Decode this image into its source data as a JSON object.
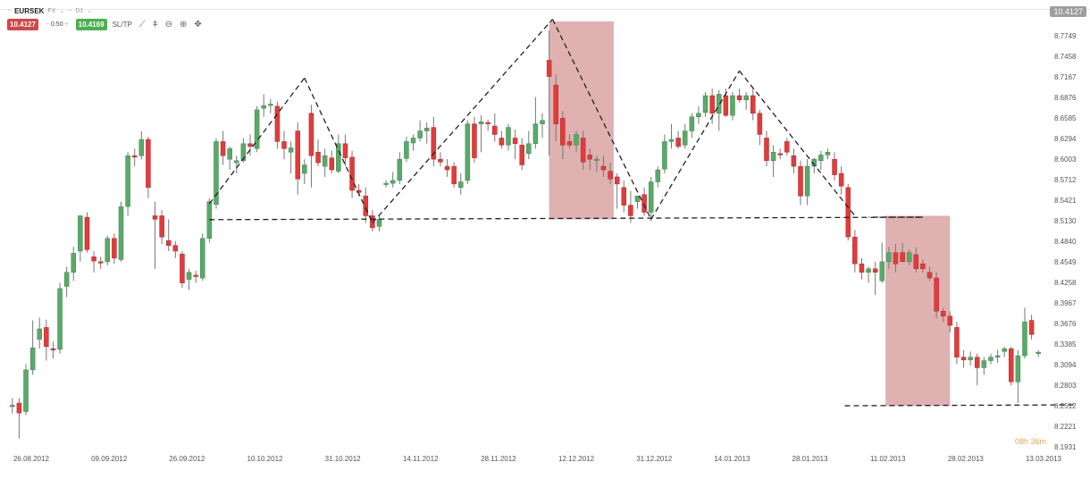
{
  "header": {
    "symbol": "EURSEK",
    "market": "FX",
    "timeframe": "D1",
    "sell_price": "10.4127",
    "lot_size": "0.50",
    "buy_price": "10.4169",
    "sltp_label": "SL/TP",
    "current_price_tag": "10.4127",
    "countdown": "08h 36m"
  },
  "icons": [
    "line-chart-icon",
    "candle-chart-icon",
    "zoom-out-icon",
    "zoom-in-icon",
    "crosshair-icon"
  ],
  "colors": {
    "bull": "#5aa96a",
    "bear": "#e03c3c",
    "zone": "#d9a3a3",
    "line": "#222222",
    "accent_timer": "#e8a55a"
  },
  "chart_data": {
    "type": "candlestick",
    "x_tick_labels": [
      "26.08.2012",
      "09.09.2012",
      "26.09.2012",
      "10.10.2012",
      "31.10.2012",
      "14.11.2012",
      "28.11.2012",
      "12.12.2012",
      "31.12.2012",
      "14.01.2013",
      "28.01.2013",
      "11.02.2013",
      "28.02.2013",
      "13.03.2013"
    ],
    "y_tick_labels": [
      "8.7749",
      "8.7458",
      "8.7167",
      "8.6876",
      "8.6585",
      "8.6294",
      "8.6003",
      "8.5712",
      "8.5421",
      "8.5130",
      "8.4840",
      "8.4549",
      "8.4258",
      "8.3967",
      "8.3676",
      "8.3385",
      "8.3094",
      "8.2803",
      "8.2512",
      "8.2221",
      "8.1931"
    ],
    "ylim": [
      8.1931,
      8.8
    ],
    "candles": [
      {
        "o": 8.25,
        "h": 8.262,
        "l": 8.24,
        "c": 8.252
      },
      {
        "o": 8.255,
        "h": 8.262,
        "l": 8.205,
        "c": 8.241
      },
      {
        "o": 8.243,
        "h": 8.31,
        "l": 8.238,
        "c": 8.302
      },
      {
        "o": 8.302,
        "h": 8.372,
        "l": 8.295,
        "c": 8.333
      },
      {
        "o": 8.345,
        "h": 8.376,
        "l": 8.332,
        "c": 8.36
      },
      {
        "o": 8.362,
        "h": 8.373,
        "l": 8.315,
        "c": 8.335
      },
      {
        "o": 8.332,
        "h": 8.342,
        "l": 8.318,
        "c": 8.33
      },
      {
        "o": 8.331,
        "h": 8.425,
        "l": 8.325,
        "c": 8.417
      },
      {
        "o": 8.42,
        "h": 8.448,
        "l": 8.405,
        "c": 8.44
      },
      {
        "o": 8.44,
        "h": 8.476,
        "l": 8.428,
        "c": 8.467
      },
      {
        "o": 8.47,
        "h": 8.52,
        "l": 8.455,
        "c": 8.52
      },
      {
        "o": 8.518,
        "h": 8.525,
        "l": 8.468,
        "c": 8.472
      },
      {
        "o": 8.462,
        "h": 8.47,
        "l": 8.44,
        "c": 8.456
      },
      {
        "o": 8.455,
        "h": 8.462,
        "l": 8.445,
        "c": 8.453
      },
      {
        "o": 8.455,
        "h": 8.492,
        "l": 8.45,
        "c": 8.488
      },
      {
        "o": 8.488,
        "h": 8.495,
        "l": 8.452,
        "c": 8.46
      },
      {
        "o": 8.458,
        "h": 8.54,
        "l": 8.455,
        "c": 8.533
      },
      {
        "o": 8.533,
        "h": 8.61,
        "l": 8.52,
        "c": 8.605
      },
      {
        "o": 8.605,
        "h": 8.615,
        "l": 8.59,
        "c": 8.603
      },
      {
        "o": 8.605,
        "h": 8.64,
        "l": 8.6,
        "c": 8.628
      },
      {
        "o": 8.628,
        "h": 8.632,
        "l": 8.545,
        "c": 8.56
      },
      {
        "o": 8.52,
        "h": 8.54,
        "l": 8.445,
        "c": 8.515
      },
      {
        "o": 8.52,
        "h": 8.528,
        "l": 8.48,
        "c": 8.49
      },
      {
        "o": 8.485,
        "h": 8.515,
        "l": 8.47,
        "c": 8.478
      },
      {
        "o": 8.478,
        "h": 8.484,
        "l": 8.46,
        "c": 8.47
      },
      {
        "o": 8.466,
        "h": 8.47,
        "l": 8.418,
        "c": 8.425
      },
      {
        "o": 8.43,
        "h": 8.445,
        "l": 8.415,
        "c": 8.44
      },
      {
        "o": 8.436,
        "h": 8.442,
        "l": 8.425,
        "c": 8.434
      },
      {
        "o": 8.432,
        "h": 8.495,
        "l": 8.428,
        "c": 8.488
      },
      {
        "o": 8.488,
        "h": 8.545,
        "l": 8.482,
        "c": 8.54
      },
      {
        "o": 8.536,
        "h": 8.63,
        "l": 8.53,
        "c": 8.625
      },
      {
        "o": 8.625,
        "h": 8.64,
        "l": 8.592,
        "c": 8.605
      },
      {
        "o": 8.6,
        "h": 8.618,
        "l": 8.585,
        "c": 8.615
      },
      {
        "o": 8.595,
        "h": 8.605,
        "l": 8.58,
        "c": 8.598
      },
      {
        "o": 8.598,
        "h": 8.63,
        "l": 8.595,
        "c": 8.622
      },
      {
        "o": 8.622,
        "h": 8.635,
        "l": 8.605,
        "c": 8.618
      },
      {
        "o": 8.615,
        "h": 8.675,
        "l": 8.61,
        "c": 8.67
      },
      {
        "o": 8.672,
        "h": 8.692,
        "l": 8.66,
        "c": 8.676
      },
      {
        "o": 8.676,
        "h": 8.685,
        "l": 8.665,
        "c": 8.678
      },
      {
        "o": 8.675,
        "h": 8.682,
        "l": 8.615,
        "c": 8.625
      },
      {
        "o": 8.625,
        "h": 8.64,
        "l": 8.6,
        "c": 8.615
      },
      {
        "o": 8.61,
        "h": 8.625,
        "l": 8.58,
        "c": 8.616
      },
      {
        "o": 8.64,
        "h": 8.652,
        "l": 8.55,
        "c": 8.572
      },
      {
        "o": 8.58,
        "h": 8.6,
        "l": 8.565,
        "c": 8.592
      },
      {
        "o": 8.665,
        "h": 8.677,
        "l": 8.56,
        "c": 8.605
      },
      {
        "o": 8.61,
        "h": 8.628,
        "l": 8.59,
        "c": 8.595
      },
      {
        "o": 8.59,
        "h": 8.615,
        "l": 8.575,
        "c": 8.605
      },
      {
        "o": 8.602,
        "h": 8.612,
        "l": 8.58,
        "c": 8.585
      },
      {
        "o": 8.583,
        "h": 8.635,
        "l": 8.58,
        "c": 8.622
      },
      {
        "o": 8.622,
        "h": 8.635,
        "l": 8.59,
        "c": 8.602
      },
      {
        "o": 8.603,
        "h": 8.612,
        "l": 8.545,
        "c": 8.556
      },
      {
        "o": 8.556,
        "h": 8.565,
        "l": 8.548,
        "c": 8.553
      },
      {
        "o": 8.548,
        "h": 8.56,
        "l": 8.51,
        "c": 8.52
      },
      {
        "o": 8.52,
        "h": 8.528,
        "l": 8.498,
        "c": 8.503
      },
      {
        "o": 8.505,
        "h": 8.52,
        "l": 8.498,
        "c": 8.515
      },
      {
        "o": 8.565,
        "h": 8.57,
        "l": 8.56,
        "c": 8.566
      },
      {
        "o": 8.566,
        "h": 8.582,
        "l": 8.56,
        "c": 8.57
      },
      {
        "o": 8.57,
        "h": 8.61,
        "l": 8.565,
        "c": 8.6
      },
      {
        "o": 8.601,
        "h": 8.632,
        "l": 8.596,
        "c": 8.625
      },
      {
        "o": 8.623,
        "h": 8.635,
        "l": 8.612,
        "c": 8.63
      },
      {
        "o": 8.63,
        "h": 8.655,
        "l": 8.625,
        "c": 8.64
      },
      {
        "o": 8.64,
        "h": 8.652,
        "l": 8.622,
        "c": 8.644
      },
      {
        "o": 8.645,
        "h": 8.66,
        "l": 8.59,
        "c": 8.6
      },
      {
        "o": 8.6,
        "h": 8.61,
        "l": 8.59,
        "c": 8.596
      },
      {
        "o": 8.59,
        "h": 8.6,
        "l": 8.575,
        "c": 8.585
      },
      {
        "o": 8.59,
        "h": 8.596,
        "l": 8.56,
        "c": 8.565
      },
      {
        "o": 8.56,
        "h": 8.58,
        "l": 8.55,
        "c": 8.568
      },
      {
        "o": 8.57,
        "h": 8.655,
        "l": 8.565,
        "c": 8.65
      },
      {
        "o": 8.65,
        "h": 8.66,
        "l": 8.595,
        "c": 8.602
      },
      {
        "o": 8.65,
        "h": 8.662,
        "l": 8.61,
        "c": 8.653
      },
      {
        "o": 8.652,
        "h": 8.656,
        "l": 8.64,
        "c": 8.65
      },
      {
        "o": 8.647,
        "h": 8.665,
        "l": 8.625,
        "c": 8.635
      },
      {
        "o": 8.63,
        "h": 8.64,
        "l": 8.615,
        "c": 8.62
      },
      {
        "o": 8.62,
        "h": 8.65,
        "l": 8.612,
        "c": 8.645
      },
      {
        "o": 8.63,
        "h": 8.642,
        "l": 8.6,
        "c": 8.622
      },
      {
        "o": 8.62,
        "h": 8.63,
        "l": 8.585,
        "c": 8.592
      },
      {
        "o": 8.608,
        "h": 8.64,
        "l": 8.6,
        "c": 8.622
      },
      {
        "o": 8.622,
        "h": 8.688,
        "l": 8.615,
        "c": 8.65
      },
      {
        "o": 8.65,
        "h": 8.665,
        "l": 8.63,
        "c": 8.655
      },
      {
        "o": 8.74,
        "h": 8.782,
        "l": 8.605,
        "c": 8.717
      },
      {
        "o": 8.705,
        "h": 8.72,
        "l": 8.625,
        "c": 8.65
      },
      {
        "o": 8.658,
        "h": 8.668,
        "l": 8.6,
        "c": 8.62
      },
      {
        "o": 8.625,
        "h": 8.635,
        "l": 8.615,
        "c": 8.62
      },
      {
        "o": 8.62,
        "h": 8.64,
        "l": 8.61,
        "c": 8.635
      },
      {
        "o": 8.63,
        "h": 8.64,
        "l": 8.585,
        "c": 8.596
      },
      {
        "o": 8.606,
        "h": 8.615,
        "l": 8.585,
        "c": 8.6
      },
      {
        "o": 8.6,
        "h": 8.605,
        "l": 8.582,
        "c": 8.6
      },
      {
        "o": 8.59,
        "h": 8.605,
        "l": 8.575,
        "c": 8.585
      },
      {
        "o": 8.583,
        "h": 8.595,
        "l": 8.565,
        "c": 8.572
      },
      {
        "o": 8.575,
        "h": 8.58,
        "l": 8.53,
        "c": 8.565
      },
      {
        "o": 8.56,
        "h": 8.57,
        "l": 8.525,
        "c": 8.535
      },
      {
        "o": 8.535,
        "h": 8.555,
        "l": 8.51,
        "c": 8.52
      },
      {
        "o": 8.54,
        "h": 8.548,
        "l": 8.53,
        "c": 8.548
      },
      {
        "o": 8.55,
        "h": 8.56,
        "l": 8.52,
        "c": 8.525
      },
      {
        "o": 8.525,
        "h": 8.575,
        "l": 8.512,
        "c": 8.568
      },
      {
        "o": 8.568,
        "h": 8.59,
        "l": 8.56,
        "c": 8.585
      },
      {
        "o": 8.586,
        "h": 8.635,
        "l": 8.58,
        "c": 8.625
      },
      {
        "o": 8.625,
        "h": 8.65,
        "l": 8.615,
        "c": 8.628
      },
      {
        "o": 8.63,
        "h": 8.64,
        "l": 8.615,
        "c": 8.618
      },
      {
        "o": 8.62,
        "h": 8.65,
        "l": 8.615,
        "c": 8.64
      },
      {
        "o": 8.64,
        "h": 8.665,
        "l": 8.63,
        "c": 8.66
      },
      {
        "o": 8.66,
        "h": 8.675,
        "l": 8.65,
        "c": 8.665
      },
      {
        "o": 8.666,
        "h": 8.695,
        "l": 8.66,
        "c": 8.69
      },
      {
        "o": 8.69,
        "h": 8.7,
        "l": 8.65,
        "c": 8.665
      },
      {
        "o": 8.665,
        "h": 8.698,
        "l": 8.64,
        "c": 8.692
      },
      {
        "o": 8.69,
        "h": 8.7,
        "l": 8.66,
        "c": 8.662
      },
      {
        "o": 8.662,
        "h": 8.695,
        "l": 8.655,
        "c": 8.69
      },
      {
        "o": 8.69,
        "h": 8.7,
        "l": 8.68,
        "c": 8.684
      },
      {
        "o": 8.684,
        "h": 8.695,
        "l": 8.67,
        "c": 8.69
      },
      {
        "o": 8.69,
        "h": 8.7,
        "l": 8.655,
        "c": 8.665
      },
      {
        "o": 8.665,
        "h": 8.67,
        "l": 8.62,
        "c": 8.635
      },
      {
        "o": 8.63,
        "h": 8.64,
        "l": 8.59,
        "c": 8.598
      },
      {
        "o": 8.598,
        "h": 8.62,
        "l": 8.575,
        "c": 8.61
      },
      {
        "o": 8.608,
        "h": 8.615,
        "l": 8.6,
        "c": 8.606
      },
      {
        "o": 8.625,
        "h": 8.63,
        "l": 8.605,
        "c": 8.61
      },
      {
        "o": 8.605,
        "h": 8.615,
        "l": 8.58,
        "c": 8.59
      },
      {
        "o": 8.59,
        "h": 8.598,
        "l": 8.535,
        "c": 8.548
      },
      {
        "o": 8.548,
        "h": 8.6,
        "l": 8.535,
        "c": 8.59
      },
      {
        "o": 8.59,
        "h": 8.602,
        "l": 8.58,
        "c": 8.6
      },
      {
        "o": 8.598,
        "h": 8.612,
        "l": 8.585,
        "c": 8.606
      },
      {
        "o": 8.606,
        "h": 8.615,
        "l": 8.6,
        "c": 8.61
      },
      {
        "o": 8.6,
        "h": 8.61,
        "l": 8.57,
        "c": 8.578
      },
      {
        "o": 8.58,
        "h": 8.59,
        "l": 8.55,
        "c": 8.562
      },
      {
        "o": 8.56,
        "h": 8.565,
        "l": 8.485,
        "c": 8.49
      },
      {
        "o": 8.49,
        "h": 8.5,
        "l": 8.44,
        "c": 8.452
      },
      {
        "o": 8.452,
        "h": 8.46,
        "l": 8.43,
        "c": 8.44
      },
      {
        "o": 8.44,
        "h": 8.448,
        "l": 8.425,
        "c": 8.445
      },
      {
        "o": 8.445,
        "h": 8.455,
        "l": 8.408,
        "c": 8.44
      },
      {
        "o": 8.428,
        "h": 8.482,
        "l": 8.425,
        "c": 8.455
      },
      {
        "o": 8.455,
        "h": 8.476,
        "l": 8.445,
        "c": 8.468
      },
      {
        "o": 8.468,
        "h": 8.48,
        "l": 8.44,
        "c": 8.452
      },
      {
        "o": 8.468,
        "h": 8.482,
        "l": 8.455,
        "c": 8.455
      },
      {
        "o": 8.455,
        "h": 8.472,
        "l": 8.45,
        "c": 8.468
      },
      {
        "o": 8.465,
        "h": 8.475,
        "l": 8.44,
        "c": 8.445
      },
      {
        "o": 8.452,
        "h": 8.458,
        "l": 8.44,
        "c": 8.445
      },
      {
        "o": 8.44,
        "h": 8.448,
        "l": 8.428,
        "c": 8.432
      },
      {
        "o": 8.432,
        "h": 8.44,
        "l": 8.375,
        "c": 8.385
      },
      {
        "o": 8.385,
        "h": 8.39,
        "l": 8.37,
        "c": 8.378
      },
      {
        "o": 8.378,
        "h": 8.385,
        "l": 8.355,
        "c": 8.365
      },
      {
        "o": 8.362,
        "h": 8.37,
        "l": 8.31,
        "c": 8.32
      },
      {
        "o": 8.32,
        "h": 8.33,
        "l": 8.305,
        "c": 8.316
      },
      {
        "o": 8.316,
        "h": 8.328,
        "l": 8.308,
        "c": 8.32
      },
      {
        "o": 8.32,
        "h": 8.325,
        "l": 8.28,
        "c": 8.305
      },
      {
        "o": 8.305,
        "h": 8.32,
        "l": 8.295,
        "c": 8.315
      },
      {
        "o": 8.315,
        "h": 8.325,
        "l": 8.31,
        "c": 8.32
      },
      {
        "o": 8.32,
        "h": 8.33,
        "l": 8.312,
        "c": 8.322
      },
      {
        "o": 8.328,
        "h": 8.335,
        "l": 8.32,
        "c": 8.332
      },
      {
        "o": 8.332,
        "h": 8.335,
        "l": 8.28,
        "c": 8.285
      },
      {
        "o": 8.285,
        "h": 8.33,
        "l": 8.255,
        "c": 8.322
      },
      {
        "o": 8.322,
        "h": 8.39,
        "l": 8.318,
        "c": 8.37
      },
      {
        "o": 8.372,
        "h": 8.38,
        "l": 8.345,
        "c": 8.352
      },
      {
        "o": 8.325,
        "h": 8.33,
        "l": 8.32,
        "c": 8.327
      }
    ]
  }
}
